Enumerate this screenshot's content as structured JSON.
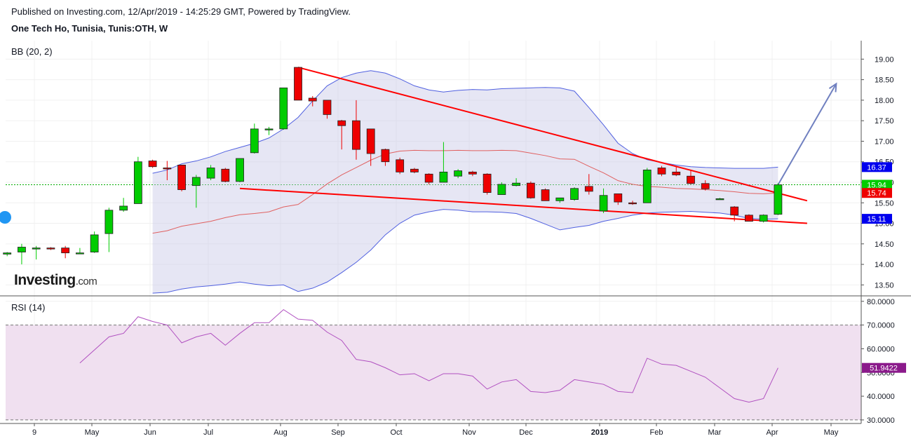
{
  "header": {
    "published": "Published on Investing.com, 12/Apr/2019 - 14:25:29 GMT, Powered by TradingView.",
    "symbol": "One Tech Ho, Tunisia, Tunis:OTH, W"
  },
  "colors": {
    "up": "#00cc00",
    "down": "#ee0000",
    "bb_line": "#5060e0",
    "bb_fill": "#c8c8e6",
    "bb_mid": "#e06060",
    "rsi_line": "#b050c0",
    "rsi_fill": "#f0e0f0",
    "trend": "#ff0000",
    "arrow": "#7080c0",
    "last_price_line": "#00aa00",
    "badge_blue": "#0000ee",
    "badge_green": "#00cc00",
    "badge_red": "#ee0000",
    "badge_purple": "#8b1a8b"
  },
  "chart_data": [
    {
      "type": "candlestick",
      "title": "",
      "indicator_label": "BB (20, 2)",
      "ylim": [
        13.25,
        19.45
      ],
      "y_ticks": [
        "19.00",
        "18.50",
        "18.00",
        "17.50",
        "17.00",
        "16.50",
        "16.00",
        "15.50",
        "15.00",
        "14.50",
        "14.00",
        "13.50"
      ],
      "x_ticks": [
        "9",
        "May",
        "Jun",
        "Jul",
        "Aug",
        "Sep",
        "Oct",
        "Nov",
        "Dec",
        "2019",
        "Feb",
        "Mar",
        "Apr",
        "May"
      ],
      "last_price_marker": 15.94,
      "price_badges": [
        {
          "label": "16.37",
          "value": 16.37,
          "color": "blue"
        },
        {
          "label": "15.94",
          "value": 15.94,
          "color": "green"
        },
        {
          "label": "15.74",
          "value": 15.74,
          "color": "red"
        },
        {
          "label": "15.11",
          "value": 15.11,
          "color": "blue"
        }
      ],
      "candles": [
        {
          "o": 14.25,
          "h": 14.3,
          "l": 14.2,
          "c": 14.28
        },
        {
          "o": 14.3,
          "h": 14.5,
          "l": 14.0,
          "c": 14.42
        },
        {
          "o": 14.4,
          "h": 14.45,
          "l": 14.12,
          "c": 14.4
        },
        {
          "o": 14.4,
          "h": 14.42,
          "l": 14.35,
          "c": 14.38
        },
        {
          "o": 14.4,
          "h": 14.45,
          "l": 14.15,
          "c": 14.28
        },
        {
          "o": 14.28,
          "h": 14.4,
          "l": 14.25,
          "c": 14.28
        },
        {
          "o": 14.3,
          "h": 14.8,
          "l": 14.28,
          "c": 14.72
        },
        {
          "o": 14.75,
          "h": 15.38,
          "l": 14.3,
          "c": 15.32
        },
        {
          "o": 15.32,
          "h": 15.62,
          "l": 15.28,
          "c": 15.42
        },
        {
          "o": 15.48,
          "h": 16.62,
          "l": 15.48,
          "c": 16.5
        },
        {
          "o": 16.52,
          "h": 16.55,
          "l": 16.35,
          "c": 16.38
        },
        {
          "o": 16.35,
          "h": 16.52,
          "l": 16.05,
          "c": 16.33
        },
        {
          "o": 16.42,
          "h": 16.42,
          "l": 15.78,
          "c": 15.82
        },
        {
          "o": 15.92,
          "h": 16.18,
          "l": 15.38,
          "c": 16.12
        },
        {
          "o": 16.1,
          "h": 16.42,
          "l": 16.05,
          "c": 16.35
        },
        {
          "o": 16.32,
          "h": 16.35,
          "l": 16.0,
          "c": 16.02
        },
        {
          "o": 16.02,
          "h": 16.58,
          "l": 16.0,
          "c": 16.58
        },
        {
          "o": 16.72,
          "h": 17.43,
          "l": 16.7,
          "c": 17.3
        },
        {
          "o": 17.28,
          "h": 17.35,
          "l": 17.15,
          "c": 17.3
        },
        {
          "o": 17.3,
          "h": 18.3,
          "l": 17.28,
          "c": 18.3
        },
        {
          "o": 18.8,
          "h": 18.8,
          "l": 18.0,
          "c": 18.0
        },
        {
          "o": 18.05,
          "h": 18.1,
          "l": 17.85,
          "c": 17.98
        },
        {
          "o": 18.0,
          "h": 18.0,
          "l": 17.55,
          "c": 17.65
        },
        {
          "o": 17.5,
          "h": 17.52,
          "l": 16.8,
          "c": 17.38
        },
        {
          "o": 17.5,
          "h": 18.0,
          "l": 16.55,
          "c": 16.8
        },
        {
          "o": 17.3,
          "h": 17.3,
          "l": 16.4,
          "c": 16.7
        },
        {
          "o": 16.8,
          "h": 16.82,
          "l": 16.4,
          "c": 16.5
        },
        {
          "o": 16.55,
          "h": 16.6,
          "l": 16.2,
          "c": 16.25
        },
        {
          "o": 16.32,
          "h": 16.35,
          "l": 16.22,
          "c": 16.25
        },
        {
          "o": 16.2,
          "h": 16.22,
          "l": 15.95,
          "c": 16.0
        },
        {
          "o": 16.0,
          "h": 16.98,
          "l": 16.0,
          "c": 16.25
        },
        {
          "o": 16.15,
          "h": 16.32,
          "l": 16.1,
          "c": 16.28
        },
        {
          "o": 16.25,
          "h": 16.28,
          "l": 16.15,
          "c": 16.2
        },
        {
          "o": 16.2,
          "h": 16.22,
          "l": 15.7,
          "c": 15.75
        },
        {
          "o": 15.7,
          "h": 16.0,
          "l": 15.7,
          "c": 15.95
        },
        {
          "o": 15.92,
          "h": 16.1,
          "l": 15.9,
          "c": 15.98
        },
        {
          "o": 15.98,
          "h": 16.02,
          "l": 15.6,
          "c": 15.62
        },
        {
          "o": 15.82,
          "h": 15.85,
          "l": 15.55,
          "c": 15.55
        },
        {
          "o": 15.55,
          "h": 15.62,
          "l": 15.5,
          "c": 15.62
        },
        {
          "o": 15.58,
          "h": 15.88,
          "l": 15.55,
          "c": 15.85
        },
        {
          "o": 15.9,
          "h": 16.2,
          "l": 15.7,
          "c": 15.78
        },
        {
          "o": 15.3,
          "h": 15.85,
          "l": 15.25,
          "c": 15.68
        },
        {
          "o": 15.72,
          "h": 15.72,
          "l": 15.45,
          "c": 15.52
        },
        {
          "o": 15.5,
          "h": 15.55,
          "l": 15.45,
          "c": 15.48
        },
        {
          "o": 15.5,
          "h": 16.35,
          "l": 15.5,
          "c": 16.3
        },
        {
          "o": 16.35,
          "h": 16.4,
          "l": 16.15,
          "c": 16.2
        },
        {
          "o": 16.25,
          "h": 16.4,
          "l": 16.15,
          "c": 16.18
        },
        {
          "o": 16.15,
          "h": 16.28,
          "l": 15.95,
          "c": 15.97
        },
        {
          "o": 15.97,
          "h": 16.05,
          "l": 15.8,
          "c": 15.84
        },
        {
          "o": 15.6,
          "h": 15.62,
          "l": 15.6,
          "c": 15.6
        },
        {
          "o": 15.4,
          "h": 15.42,
          "l": 15.05,
          "c": 15.2
        },
        {
          "o": 15.2,
          "h": 15.22,
          "l": 15.05,
          "c": 15.05
        },
        {
          "o": 15.05,
          "h": 15.22,
          "l": 15.02,
          "c": 15.2
        },
        {
          "o": 15.22,
          "h": 15.98,
          "l": 15.2,
          "c": 15.94
        }
      ],
      "bb_upper": [
        16.22,
        16.3,
        16.45,
        16.52,
        16.62,
        16.75,
        16.85,
        16.95,
        17.08,
        17.3,
        17.58,
        17.98,
        18.35,
        18.55,
        18.66,
        18.72,
        18.66,
        18.52,
        18.35,
        18.25,
        18.2,
        18.24,
        18.26,
        18.25,
        18.28,
        18.29,
        18.3,
        18.31,
        18.3,
        18.22,
        17.82,
        17.4,
        16.95,
        16.7,
        16.55,
        16.48,
        16.42,
        16.38,
        16.36,
        16.35,
        16.34,
        16.34,
        16.34,
        16.37
      ],
      "bb_lower": [
        13.3,
        13.32,
        13.4,
        13.45,
        13.48,
        13.52,
        13.57,
        13.52,
        13.48,
        13.5,
        13.34,
        13.42,
        13.57,
        13.8,
        14.05,
        14.35,
        14.72,
        15.0,
        15.2,
        15.28,
        15.34,
        15.32,
        15.28,
        15.28,
        15.27,
        15.24,
        15.12,
        14.98,
        14.84,
        14.9,
        14.95,
        15.05,
        15.12,
        15.2,
        15.25,
        15.27,
        15.28,
        15.29,
        15.27,
        15.25,
        15.2,
        15.12,
        15.1,
        15.11
      ],
      "bb_basis": [
        14.76,
        14.82,
        14.93,
        14.99,
        15.05,
        15.14,
        15.21,
        15.24,
        15.28,
        15.4,
        15.46,
        15.7,
        15.96,
        16.18,
        16.36,
        16.54,
        16.69,
        16.76,
        16.78,
        16.77,
        16.77,
        16.78,
        16.77,
        16.77,
        16.78,
        16.77,
        16.71,
        16.65,
        16.57,
        16.56,
        16.39,
        16.23,
        16.04,
        15.95,
        15.9,
        15.88,
        15.85,
        15.84,
        15.82,
        15.8,
        15.77,
        15.73,
        15.72,
        15.74
      ],
      "trendlines": [
        {
          "from": [
            20,
            18.8
          ],
          "to": [
            55,
            15.55
          ]
        },
        {
          "from": [
            16,
            15.85
          ],
          "to": [
            55,
            15.0
          ]
        }
      ],
      "projection_arrow": {
        "from": [
          53,
          15.94
        ],
        "to": [
          57,
          18.4
        ]
      }
    },
    {
      "type": "line",
      "title": "",
      "indicator_label": "RSI (14)",
      "ylim": [
        28.5,
        82
      ],
      "y_ticks": [
        "80.0000",
        "70.0000",
        "60.0000",
        "50.0000",
        "40.0000",
        "30.0000"
      ],
      "bands": [
        70,
        30
      ],
      "last_value_badge": "51.9422",
      "values": [
        54,
        59.5,
        65,
        66.5,
        73.5,
        71.5,
        70,
        62.5,
        65,
        66.5,
        61.5,
        66.5,
        71,
        71,
        76.5,
        72.5,
        72,
        67,
        63.5,
        55.5,
        54.5,
        52,
        49,
        49.5,
        46.5,
        49.5,
        49.5,
        48.5,
        43,
        46,
        47,
        42,
        41.5,
        42.5,
        47,
        46,
        45,
        42,
        41.5,
        56,
        53.5,
        53,
        50.5,
        48,
        43.5,
        39,
        37.5,
        39,
        51.9422
      ]
    }
  ],
  "branding": {
    "logo_word": "Investing",
    "logo_suffix": ".com"
  }
}
